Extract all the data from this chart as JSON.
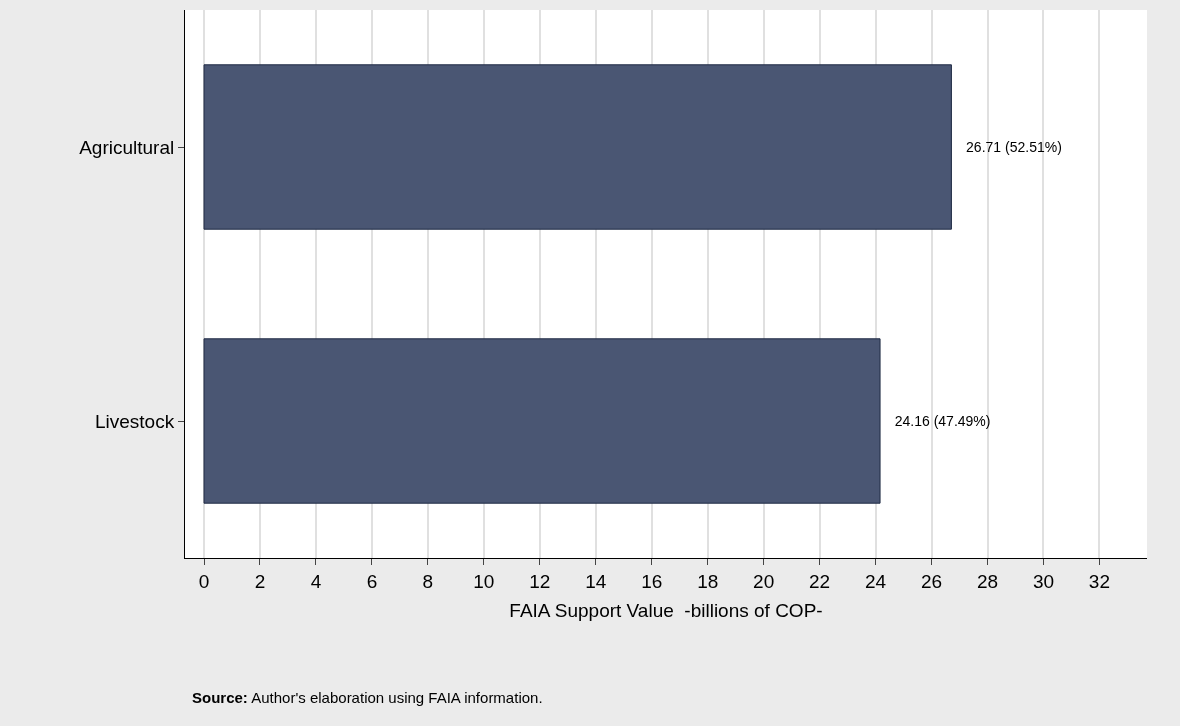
{
  "chart_data": {
    "type": "bar",
    "orientation": "horizontal",
    "categories": [
      "Agricultural",
      "Livestock"
    ],
    "values": [
      26.71,
      24.16
    ],
    "color": "#4a5673",
    "value_labels": [
      "26.71 (52.51%)",
      "24.16 (47.49%)"
    ],
    "xlabel": "FAIA Support Value  -billions of COP-",
    "xlim": [
      -0.68,
      33.7
    ],
    "xticks": [
      0,
      2,
      4,
      6,
      8,
      10,
      12,
      14,
      16,
      18,
      20,
      22,
      24,
      26,
      28,
      30,
      32
    ],
    "grid": "x",
    "annotations": [
      "Source: Author's elaboration using FAIA information."
    ]
  }
}
